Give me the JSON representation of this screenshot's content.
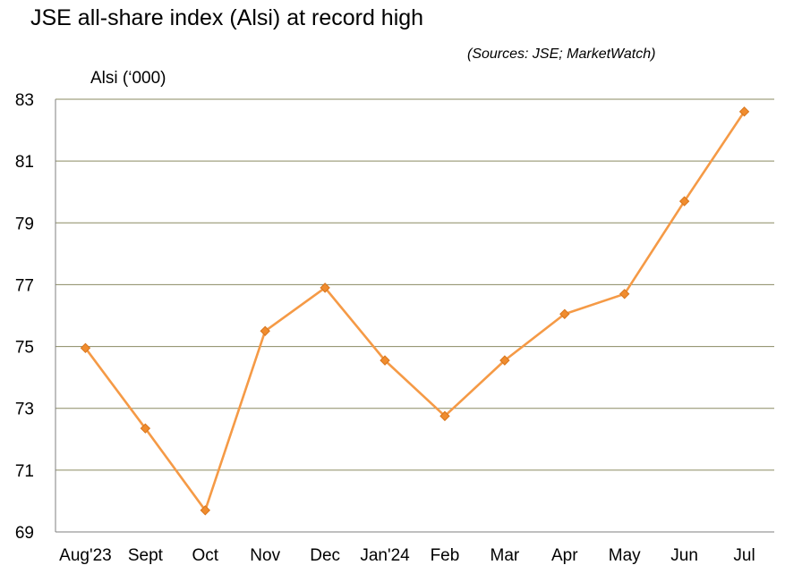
{
  "chart_data": {
    "type": "line",
    "title": "JSE all-share index (Alsi) at record high",
    "source": "(Sources: JSE; MarketWatch)",
    "ylabel": "Alsi (‘000)",
    "xlabel": "",
    "categories": [
      "Aug'23",
      "Sept",
      "Oct",
      "Nov",
      "Dec",
      "Jan'24",
      "Feb",
      "Mar",
      "Apr",
      "May",
      "Jun",
      "Jul"
    ],
    "series": [
      {
        "values": [
          74.95,
          72.35,
          69.7,
          75.5,
          76.9,
          74.55,
          72.75,
          74.55,
          76.05,
          76.7,
          79.7,
          82.6
        ]
      }
    ],
    "ylim": [
      69,
      83
    ],
    "yticks": [
      69,
      71,
      73,
      75,
      77,
      79,
      81,
      83
    ],
    "grid": true,
    "legend": "none",
    "colors": {
      "line": "#f59a46",
      "marker_fill": "#f08c2e",
      "marker_stroke": "#d8751c",
      "grid": "#8a8a62",
      "axis": "#7f7f7f"
    }
  }
}
